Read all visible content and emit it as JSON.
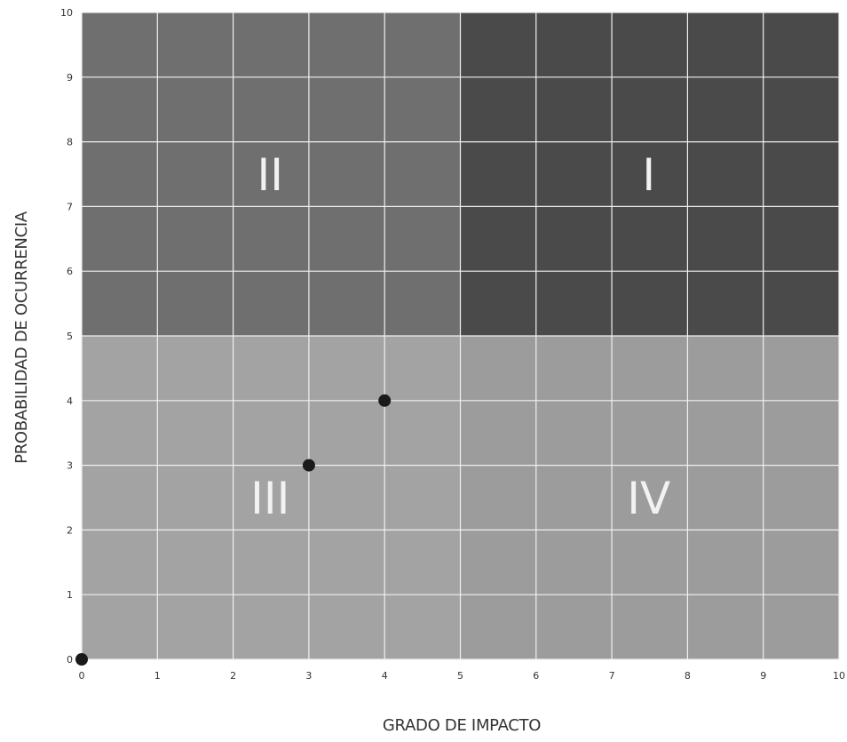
{
  "chart_data": {
    "type": "scatter",
    "title": "",
    "xlabel": "GRADO DE IMPACTO",
    "ylabel": "PROBABILIDAD DE OCURRENCIA",
    "xlim": [
      0,
      10
    ],
    "ylim": [
      0,
      10
    ],
    "x_ticks": [
      "0",
      "1",
      "2",
      "3",
      "4",
      "5",
      "6",
      "7",
      "8",
      "9",
      "10"
    ],
    "y_ticks": [
      "0",
      "1",
      "2",
      "3",
      "4",
      "5",
      "6",
      "7",
      "8",
      "9",
      "10"
    ],
    "grid": true,
    "quadrants": [
      {
        "label": "I",
        "x_range": [
          5,
          10
        ],
        "y_range": [
          5,
          10
        ],
        "color": "#4a4a4a"
      },
      {
        "label": "II",
        "x_range": [
          0,
          5
        ],
        "y_range": [
          5,
          10
        ],
        "color": "#6f6f6f"
      },
      {
        "label": "III",
        "x_range": [
          0,
          5
        ],
        "y_range": [
          0,
          5
        ],
        "color": "#a3a3a3"
      },
      {
        "label": "IV",
        "x_range": [
          5,
          10
        ],
        "y_range": [
          0,
          5
        ],
        "color": "#9c9c9c"
      }
    ],
    "points": [
      {
        "x": 0,
        "y": 0
      },
      {
        "x": 3,
        "y": 3
      },
      {
        "x": 4,
        "y": 4
      }
    ],
    "point_color": "#1a1a1a",
    "grid_color": "#f0f0f0"
  }
}
